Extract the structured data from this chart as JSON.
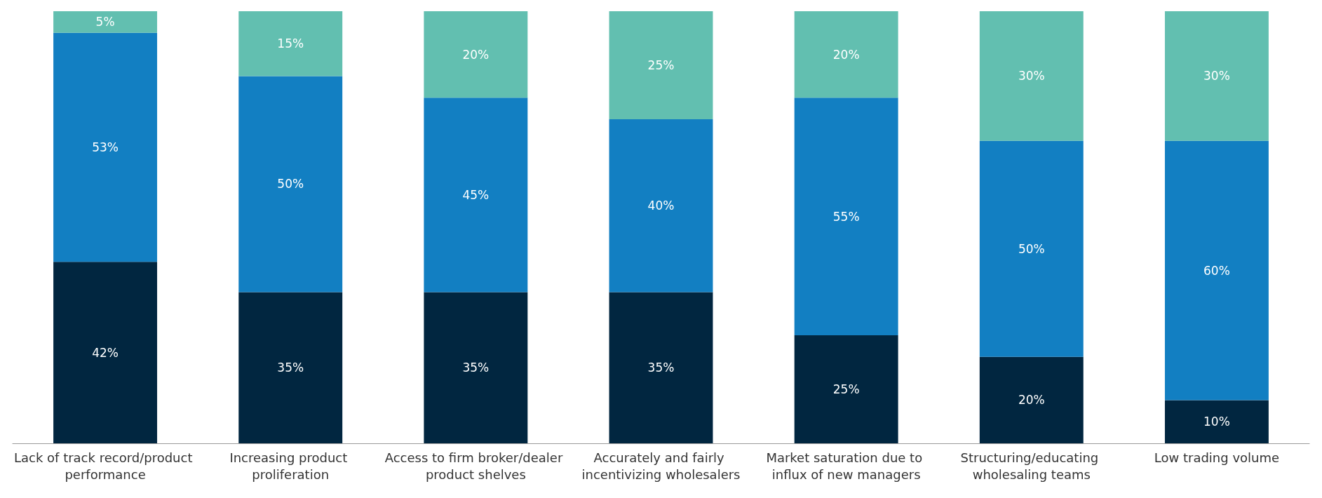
{
  "chart_data": {
    "type": "bar",
    "stacked": true,
    "categories": [
      "Lack of track record/product performance",
      "Increasing product proliferation",
      "Access to firm broker/dealer product shelves",
      "Accurately and fairly incentivizing wholesalers",
      "Market saturation due to influx of new managers",
      "Structuring/educating wholesaling teams",
      "Low trading volume"
    ],
    "series": [
      {
        "color": "#012640",
        "values": [
          42,
          35,
          35,
          35,
          25,
          20,
          10
        ],
        "value_labels": [
          "42%",
          "35%",
          "35%",
          "35%",
          "25%",
          "20%",
          "10%"
        ]
      },
      {
        "color": "#127fc2",
        "values": [
          53,
          50,
          45,
          40,
          55,
          50,
          60
        ],
        "value_labels": [
          "53%",
          "50%",
          "45%",
          "40%",
          "55%",
          "50%",
          "60%"
        ]
      },
      {
        "color": "#62bfb0",
        "values": [
          5,
          15,
          20,
          25,
          20,
          30,
          30
        ],
        "value_labels": [
          "5%",
          "15%",
          "20%",
          "25%",
          "20%",
          "30%",
          "30%"
        ]
      }
    ]
  }
}
